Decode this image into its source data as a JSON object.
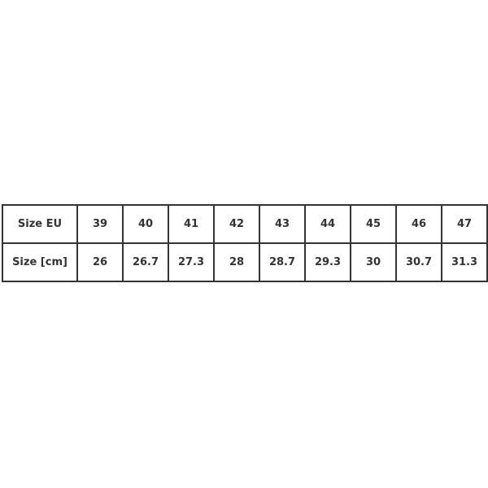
{
  "table": {
    "rows": [
      {
        "label": "Size EU",
        "values": [
          "39",
          "40",
          "41",
          "42",
          "43",
          "44",
          "45",
          "46",
          "47"
        ]
      },
      {
        "label": "Size [cm]",
        "values": [
          "26",
          "26.7",
          "27.3",
          "28",
          "28.7",
          "29.3",
          "30",
          "30.7",
          "31.3"
        ]
      }
    ]
  }
}
